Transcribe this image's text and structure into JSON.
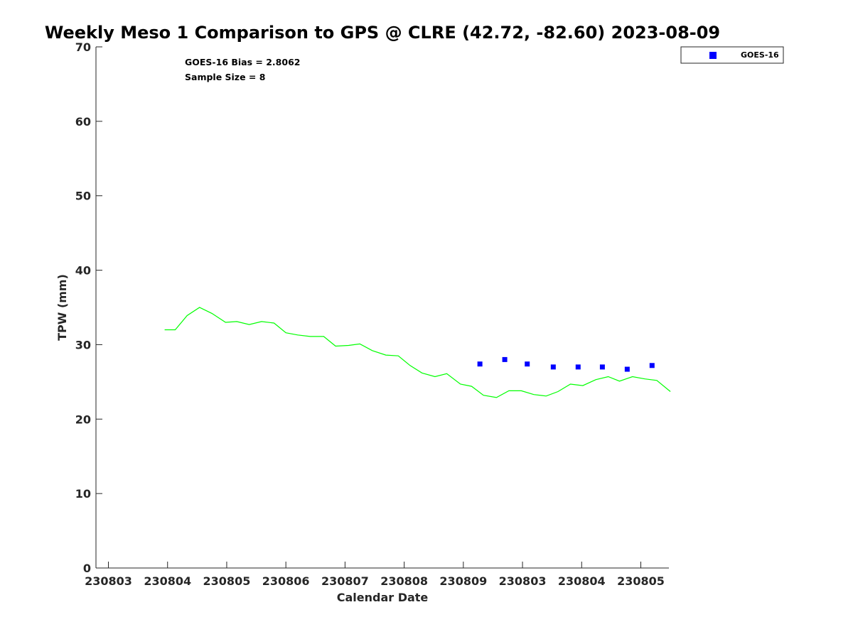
{
  "chart_data": {
    "type": "line",
    "title": "Weekly Meso 1 Comparison to GPS @ CLRE (42.72, -82.60) 2023-08-09",
    "xlabel": "Calendar Date",
    "ylabel": "TPW (mm)",
    "ylim": [
      0,
      70
    ],
    "xlim": [
      0,
      9.5
    ],
    "x_ticks": [
      {
        "x": 0,
        "label": "230803"
      },
      {
        "x": 1,
        "label": "230804"
      },
      {
        "x": 2,
        "label": "230805"
      },
      {
        "x": 3,
        "label": "230806"
      },
      {
        "x": 4,
        "label": "230807"
      },
      {
        "x": 5,
        "label": "230808"
      },
      {
        "x": 6,
        "label": "230809"
      },
      {
        "x": 7,
        "label": "230803"
      },
      {
        "x": 8,
        "label": "230804"
      },
      {
        "x": 9,
        "label": "230805"
      }
    ],
    "y_ticks": [
      0,
      10,
      20,
      30,
      40,
      50,
      60,
      70
    ],
    "grid": false,
    "annotations": [
      "GOES-16 Bias = 2.8062",
      "Sample Size = 8"
    ],
    "legend": {
      "position": "top-right",
      "entries": [
        "GOES-16"
      ]
    },
    "series": [
      {
        "style": "line",
        "color": "#00ff00",
        "points": [
          [
            0.95,
            32.0
          ],
          [
            1.13,
            32.0
          ],
          [
            1.33,
            33.9
          ],
          [
            1.54,
            35.0
          ],
          [
            1.75,
            34.2
          ],
          [
            1.98,
            33.0
          ],
          [
            2.17,
            33.1
          ],
          [
            2.38,
            32.7
          ],
          [
            2.59,
            33.1
          ],
          [
            2.8,
            32.9
          ],
          [
            3.0,
            31.6
          ],
          [
            3.2,
            31.3
          ],
          [
            3.41,
            31.1
          ],
          [
            3.64,
            31.1
          ],
          [
            3.84,
            29.8
          ],
          [
            4.06,
            29.9
          ],
          [
            4.25,
            30.1
          ],
          [
            4.46,
            29.2
          ],
          [
            4.69,
            28.6
          ],
          [
            4.9,
            28.5
          ],
          [
            5.1,
            27.2
          ],
          [
            5.3,
            26.2
          ],
          [
            5.52,
            25.7
          ],
          [
            5.72,
            26.1
          ],
          [
            5.95,
            24.7
          ],
          [
            6.14,
            24.4
          ],
          [
            6.34,
            23.2
          ],
          [
            6.56,
            22.9
          ],
          [
            6.77,
            23.8
          ],
          [
            6.98,
            23.8
          ],
          [
            7.19,
            23.3
          ],
          [
            7.4,
            23.1
          ],
          [
            7.6,
            23.7
          ],
          [
            7.81,
            24.7
          ],
          [
            8.02,
            24.5
          ],
          [
            8.24,
            25.3
          ],
          [
            8.45,
            25.7
          ],
          [
            8.64,
            25.1
          ],
          [
            8.86,
            25.7
          ],
          [
            9.07,
            25.4
          ],
          [
            9.27,
            25.2
          ],
          [
            9.5,
            23.7
          ]
        ]
      },
      {
        "name": "GOES-16",
        "style": "marker",
        "color": "#0000ff",
        "points": [
          [
            6.28,
            27.4
          ],
          [
            6.7,
            28.0
          ],
          [
            7.08,
            27.4
          ],
          [
            7.52,
            27.0
          ],
          [
            7.94,
            27.0
          ],
          [
            8.35,
            27.0
          ],
          [
            8.77,
            26.7
          ],
          [
            9.19,
            27.2
          ]
        ]
      }
    ]
  }
}
